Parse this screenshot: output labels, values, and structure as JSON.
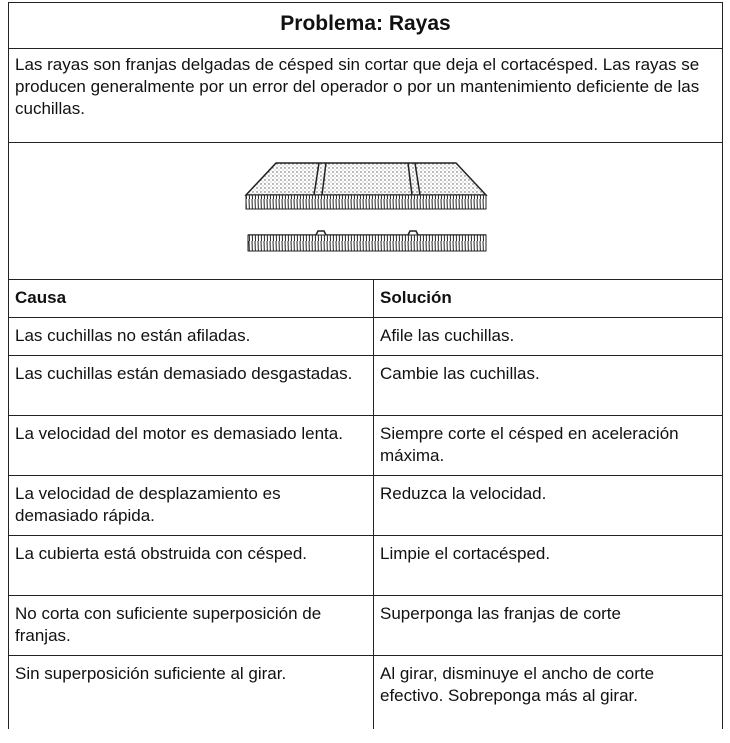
{
  "header": {
    "title": "Problema: Rayas"
  },
  "description": "Las rayas son franjas delgadas de césped sin cortar que deja el cortacésped. Las rayas se producen generalmente por un error del operador o por un mantenimiento deficiente de las cuchillas.",
  "table": {
    "headers": [
      "Causa",
      "Solución"
    ],
    "rows": [
      [
        "Las cuchillas no están afiladas.",
        "Afile las cuchillas."
      ],
      [
        "Las cuchillas están demasiado desgastadas.",
        "Cambie las cuchillas."
      ],
      [
        "La velocidad del motor es demasiado lenta.",
        "Siempre corte el césped en aceleración máxima."
      ],
      [
        "La velocidad de desplazamiento es demasiado rápida.",
        "Reduzca la velocidad."
      ],
      [
        "La cubierta está obstruida con césped.",
        "Limpie el cortacésped."
      ],
      [
        "No corta con suficiente superposición de franjas.",
        "Superponga las franjas de corte"
      ],
      [
        "Sin superposición suficiente al girar.",
        "Al girar, disminuye el ancho de corte efectivo. Sobreponga más al girar."
      ]
    ]
  }
}
